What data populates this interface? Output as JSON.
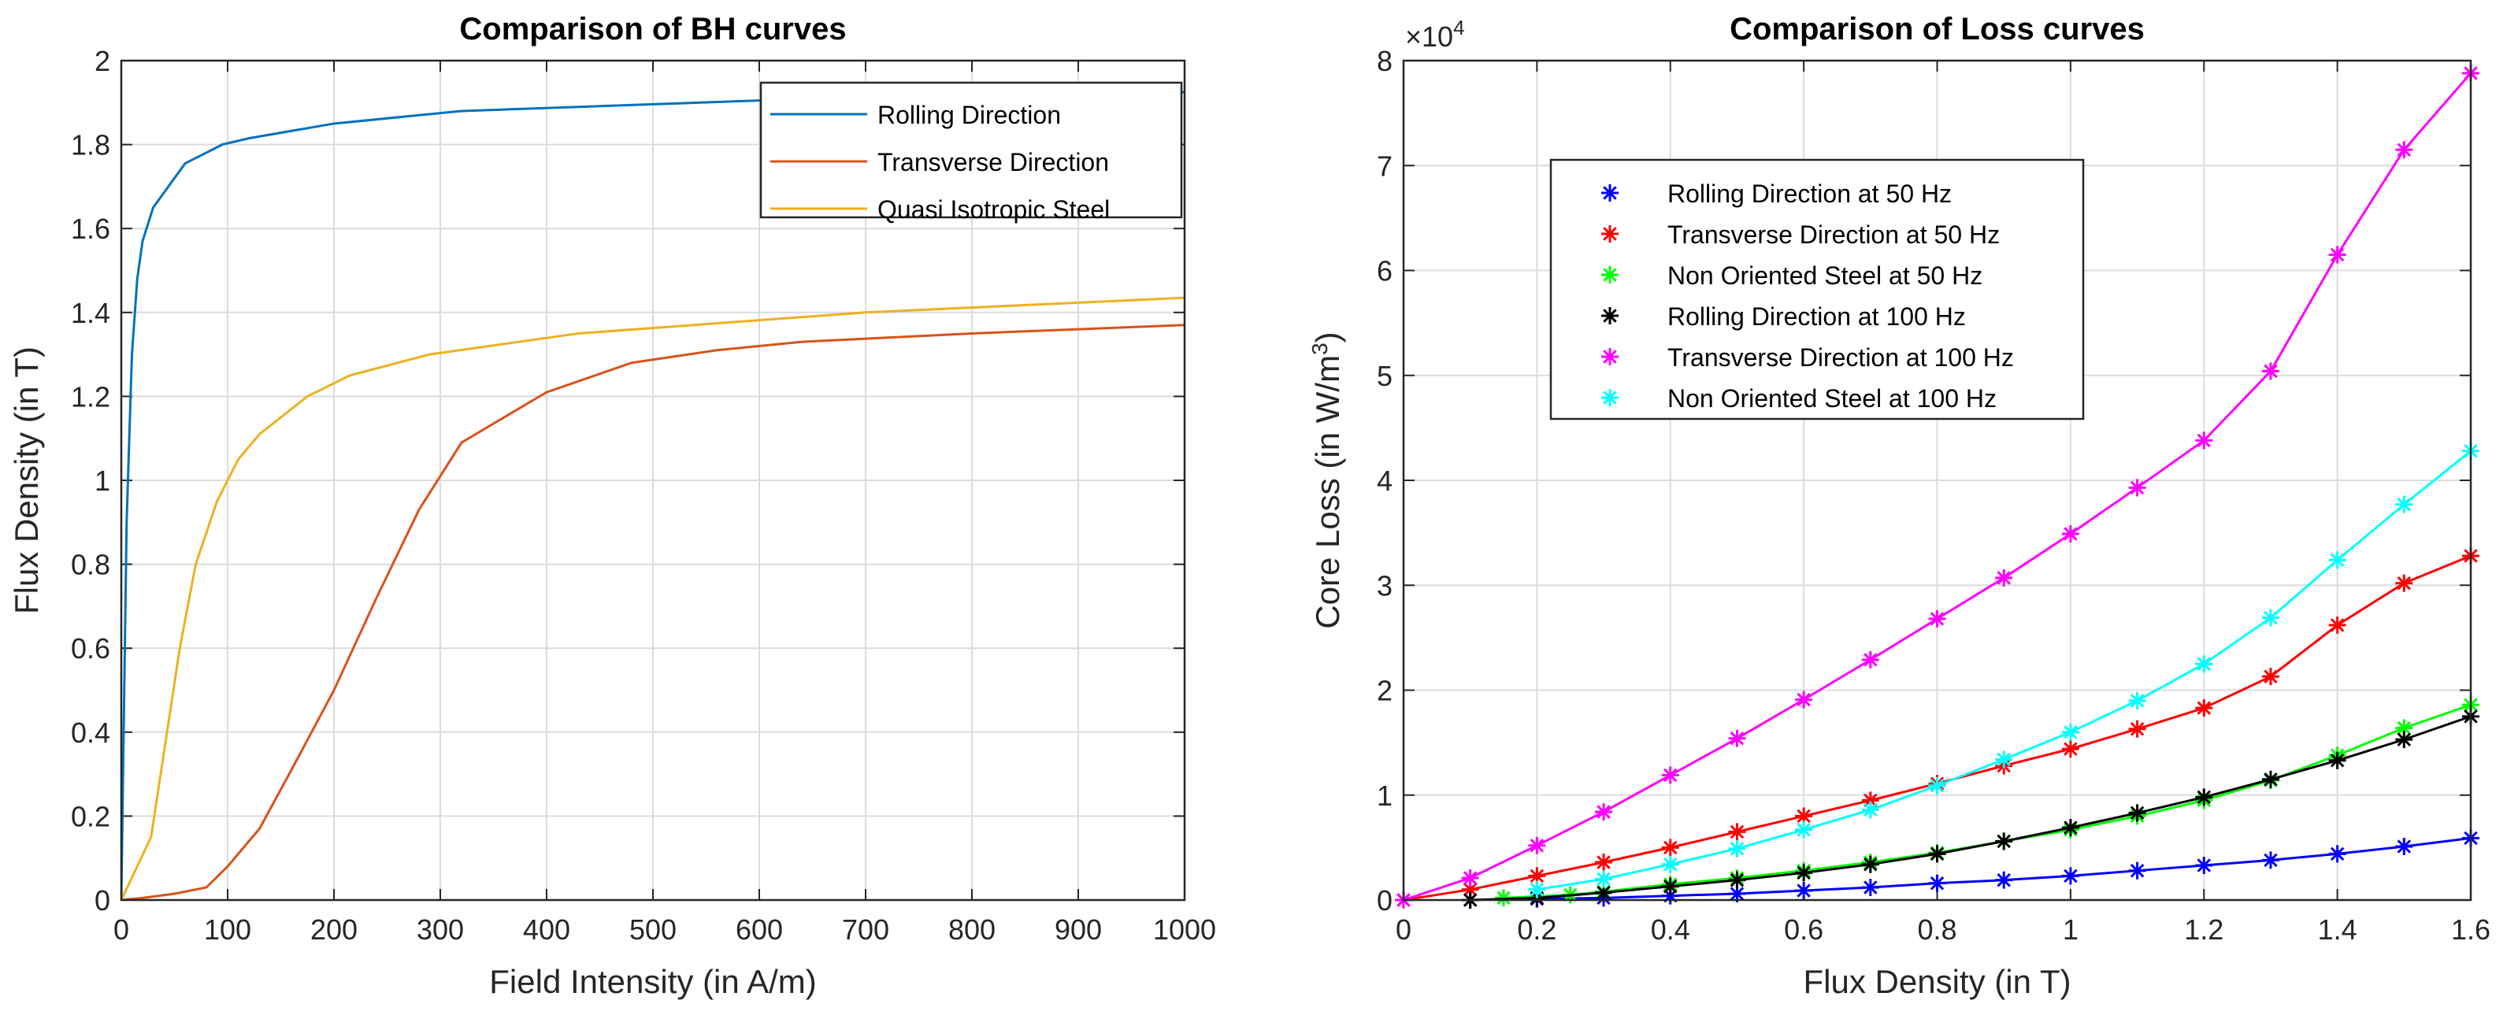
{
  "chart_data": [
    {
      "type": "line",
      "title": "Comparison of BH curves",
      "xlabel": "Field Intensity (in A/m)",
      "ylabel": "Flux Density (in T)",
      "xlim": [
        0,
        1000
      ],
      "ylim": [
        0,
        2
      ],
      "xticks": [
        0,
        100,
        200,
        300,
        400,
        500,
        600,
        700,
        800,
        900,
        1000
      ],
      "xtick_labels": [
        "0",
        "100",
        "200",
        "300",
        "400",
        "500",
        "600",
        "700",
        "800",
        "900",
        "1000"
      ],
      "yticks": [
        0,
        0.2,
        0.4,
        0.6,
        0.8,
        1,
        1.2,
        1.4,
        1.6,
        1.8,
        2
      ],
      "ytick_labels": [
        "0",
        "0.2",
        "0.4",
        "0.6",
        "0.8",
        "1",
        "1.2",
        "1.4",
        "1.6",
        "1.8",
        "2"
      ],
      "grid": true,
      "legend_placement": "top-right",
      "series": [
        {
          "name": "Rolling Direction",
          "color": "#0072BD",
          "x": [
            0,
            5,
            10,
            15,
            20,
            30,
            60,
            95,
            120,
            200,
            320,
            600,
            1000
          ],
          "y": [
            0,
            0.9,
            1.3,
            1.48,
            1.57,
            1.65,
            1.755,
            1.8,
            1.815,
            1.85,
            1.88,
            1.905,
            1.925
          ]
        },
        {
          "name": "Transverse Direction",
          "color": "#D95319",
          "x": [
            0,
            20,
            50,
            80,
            100,
            130,
            160,
            200,
            240,
            280,
            320,
            400,
            480,
            560,
            640,
            800,
            1000
          ],
          "y": [
            0,
            0.005,
            0.015,
            0.03,
            0.08,
            0.17,
            0.31,
            0.5,
            0.72,
            0.93,
            1.09,
            1.21,
            1.28,
            1.31,
            1.33,
            1.35,
            1.37
          ]
        },
        {
          "name": "Quasi Isotropic Steel",
          "color": "#EDB120",
          "x": [
            0,
            28,
            40,
            55,
            70,
            90,
            110,
            130,
            150,
            175,
            215,
            290,
            430,
            700,
            1000
          ],
          "y": [
            0,
            0.15,
            0.35,
            0.6,
            0.8,
            0.95,
            1.05,
            1.11,
            1.15,
            1.2,
            1.25,
            1.3,
            1.35,
            1.4,
            1.435
          ]
        }
      ]
    },
    {
      "type": "line",
      "title": "Comparison of Loss curves",
      "xlabel": "Flux Density (in T)",
      "ylabel": "Core Loss (in W/m",
      "ylabel_sup": "3",
      "ylabel_end": ")",
      "y_multiplier": "×10",
      "y_multiplier_exp": "4",
      "xlim": [
        0,
        1.6
      ],
      "ylim": [
        0,
        8
      ],
      "xticks": [
        0,
        0.2,
        0.4,
        0.6,
        0.8,
        1,
        1.2,
        1.4,
        1.6
      ],
      "xtick_labels": [
        "0",
        "0.2",
        "0.4",
        "0.6",
        "0.8",
        "1",
        "1.2",
        "1.4",
        "1.6"
      ],
      "yticks": [
        0,
        1,
        2,
        3,
        4,
        5,
        6,
        7,
        8
      ],
      "ytick_labels": [
        "0",
        "1",
        "2",
        "3",
        "4",
        "5",
        "6",
        "7",
        "8"
      ],
      "grid": true,
      "legend_placement": "upper-left-center",
      "marker": "asterisk",
      "series": [
        {
          "name": "Rolling Direction at 50 Hz",
          "color": "#0000FF",
          "x": [
            0.1,
            0.2,
            0.3,
            0.4,
            0.5,
            0.6,
            0.7,
            0.8,
            0.9,
            1.0,
            1.1,
            1.2,
            1.3,
            1.4,
            1.5,
            1.6
          ],
          "y": [
            0,
            0.01,
            0.02,
            0.04,
            0.06,
            0.09,
            0.12,
            0.16,
            0.19,
            0.23,
            0.28,
            0.33,
            0.38,
            0.44,
            0.51,
            0.59
          ]
        },
        {
          "name": "Transverse Direction at 50 Hz",
          "color": "#FF0000",
          "x": [
            0,
            0.1,
            0.2,
            0.3,
            0.4,
            0.5,
            0.6,
            0.7,
            0.8,
            0.9,
            1.0,
            1.1,
            1.2,
            1.3,
            1.4,
            1.5,
            1.6
          ],
          "y": [
            0,
            0.1,
            0.23,
            0.36,
            0.5,
            0.65,
            0.8,
            0.95,
            1.11,
            1.28,
            1.44,
            1.63,
            1.83,
            2.13,
            2.62,
            3.02,
            3.28
          ]
        },
        {
          "name": "Non Oriented Steel at 50 Hz",
          "color": "#00FF00",
          "x": [
            0.15,
            0.25,
            0.3,
            0.4,
            0.5,
            0.6,
            0.7,
            0.8,
            0.9,
            1.0,
            1.1,
            1.2,
            1.3,
            1.4,
            1.5,
            1.6
          ],
          "y": [
            0.02,
            0.05,
            0.08,
            0.15,
            0.21,
            0.28,
            0.36,
            0.45,
            0.56,
            0.67,
            0.8,
            0.95,
            1.14,
            1.38,
            1.64,
            1.86
          ]
        },
        {
          "name": "Rolling Direction at 100 Hz",
          "color": "#000000",
          "x": [
            0.1,
            0.2,
            0.3,
            0.4,
            0.5,
            0.6,
            0.7,
            0.8,
            0.9,
            1.0,
            1.1,
            1.2,
            1.3,
            1.4,
            1.5,
            1.6
          ],
          "y": [
            0,
            0.02,
            0.07,
            0.13,
            0.19,
            0.26,
            0.34,
            0.44,
            0.56,
            0.69,
            0.83,
            0.98,
            1.15,
            1.33,
            1.53,
            1.75
          ]
        },
        {
          "name": "Transverse Direction at 100 Hz",
          "color": "#FF00FF",
          "x": [
            0,
            0.1,
            0.2,
            0.3,
            0.4,
            0.5,
            0.6,
            0.7,
            0.8,
            0.9,
            1.0,
            1.1,
            1.2,
            1.3,
            1.4,
            1.5,
            1.6
          ],
          "y": [
            0,
            0.21,
            0.52,
            0.84,
            1.19,
            1.54,
            1.91,
            2.29,
            2.68,
            3.07,
            3.49,
            3.93,
            4.38,
            5.04,
            6.15,
            7.15,
            7.88
          ]
        },
        {
          "name": "Non Oriented Steel at 100 Hz",
          "color": "#00FFFF",
          "x": [
            0.2,
            0.3,
            0.4,
            0.5,
            0.6,
            0.7,
            0.8,
            0.9,
            1.0,
            1.1,
            1.2,
            1.3,
            1.4,
            1.5,
            1.6
          ],
          "y": [
            0.1,
            0.2,
            0.34,
            0.49,
            0.67,
            0.86,
            1.09,
            1.34,
            1.6,
            1.9,
            2.25,
            2.69,
            3.24,
            3.77,
            4.28
          ]
        }
      ]
    }
  ]
}
